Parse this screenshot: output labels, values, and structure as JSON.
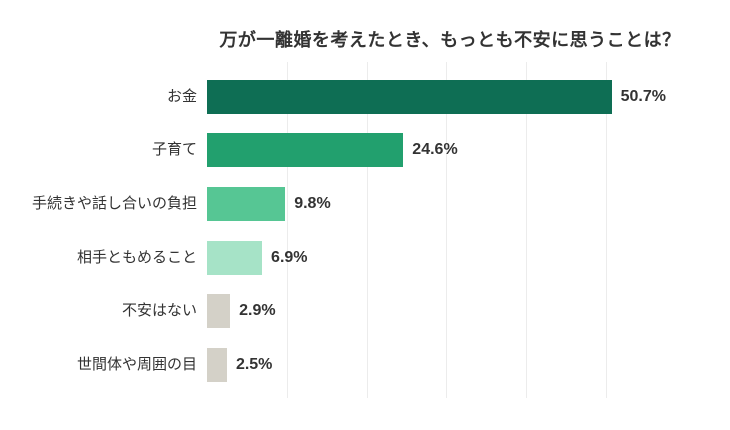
{
  "chart": {
    "title": "万が一離婚を考えたとき、もっとも不安に思うことは？"
  },
  "chart_data": {
    "type": "bar",
    "orientation": "horizontal",
    "title": "万が一離婚を考えたとき、もっとも不安に思うことは？",
    "categories": [
      "お金",
      "子育て",
      "手続きや話し合いの負担",
      "相手ともめること",
      "不安はない",
      "世間体や周囲の目"
    ],
    "values": [
      50.7,
      24.6,
      9.8,
      6.9,
      2.9,
      2.5
    ],
    "value_labels": [
      "50.7%",
      "24.6%",
      "9.8%",
      "6.9%",
      "2.9%",
      "2.5%"
    ],
    "bar_colors": [
      "#0E6E54",
      "#22A06E",
      "#56C694",
      "#A6E3C7",
      "#D4D1C8",
      "#D4D1C8"
    ],
    "xlabel": "",
    "ylabel": "",
    "xlim": [
      0,
      50
    ],
    "grid": true,
    "gridline_percents": [
      10,
      20,
      30,
      40,
      50
    ],
    "gridline_color": "#ececec",
    "legend": false,
    "background": "#ffffff",
    "text_color": "#333333"
  }
}
